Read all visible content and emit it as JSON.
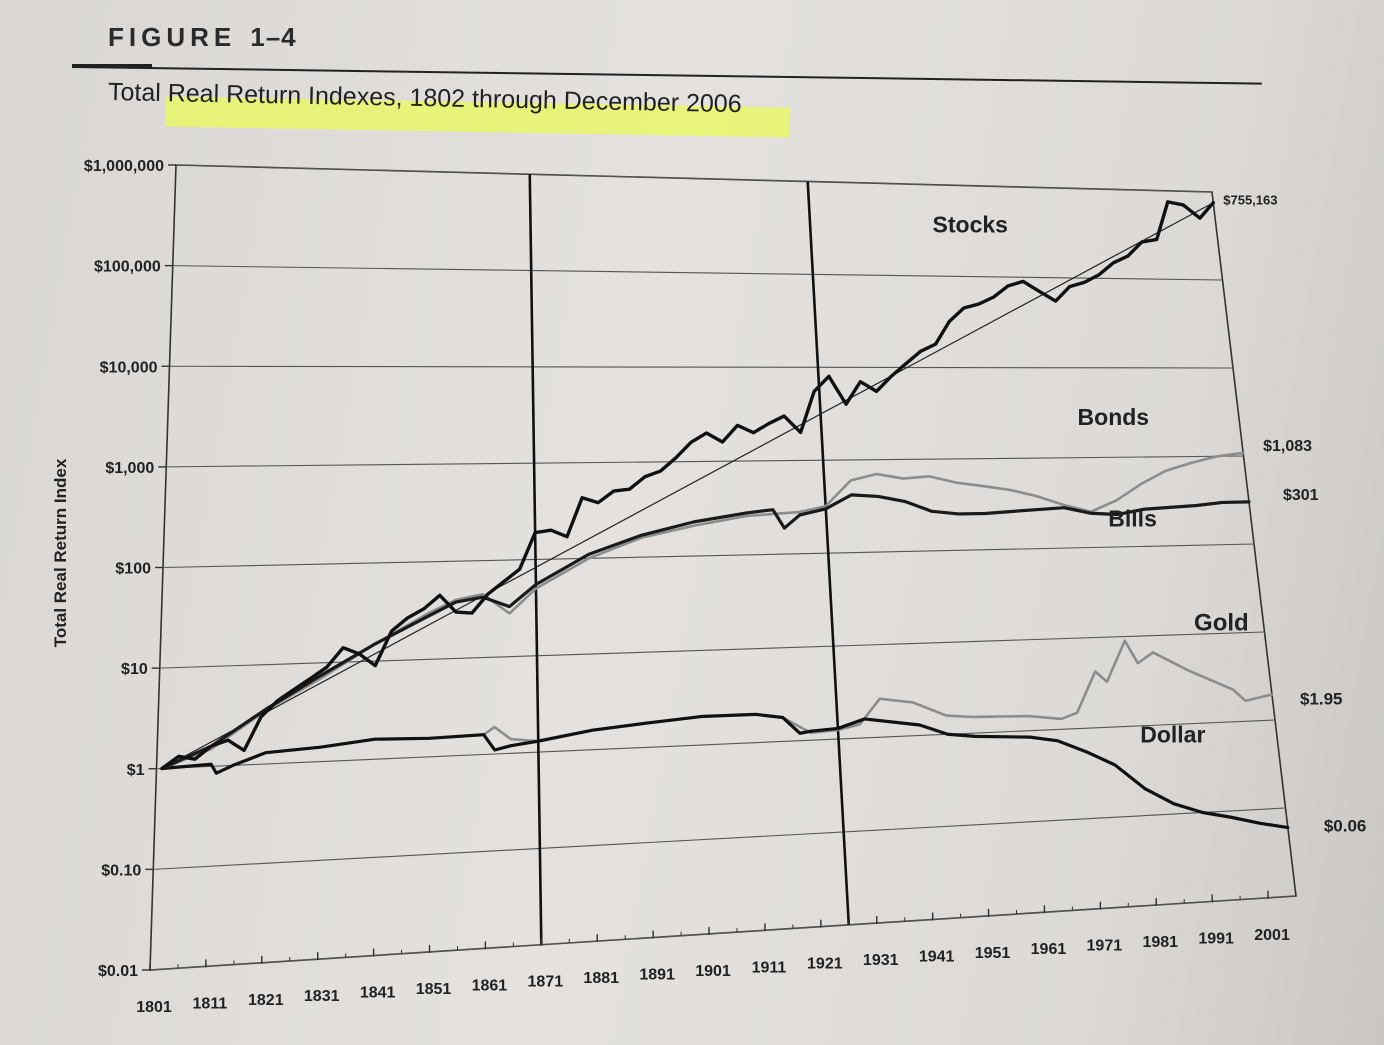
{
  "figure": {
    "label": "FIGURE",
    "number": "1–4",
    "title": "Total Real Return Indexes, 1802 through December 2006"
  },
  "chart_data": {
    "type": "line",
    "title": "Total Real Return Indexes, 1802 through December 2006",
    "ylabel": "Total Real Return Index",
    "xlabel": "",
    "y_scale": "log",
    "ylim": [
      0.01,
      1000000
    ],
    "xlim": [
      1801,
      2006
    ],
    "y_ticks": [
      {
        "value": 1000000,
        "label": "$1,000,000"
      },
      {
        "value": 100000,
        "label": "$100,000"
      },
      {
        "value": 10000,
        "label": "$10,000"
      },
      {
        "value": 1000,
        "label": "$1,000"
      },
      {
        "value": 100,
        "label": "$100"
      },
      {
        "value": 10,
        "label": "$10"
      },
      {
        "value": 1,
        "label": "$1"
      },
      {
        "value": 0.1,
        "label": "$0.10"
      },
      {
        "value": 0.01,
        "label": "$0.01"
      }
    ],
    "x_ticks": [
      "1801",
      "1811",
      "1821",
      "1831",
      "1841",
      "1851",
      "1861",
      "1871",
      "1881",
      "1891",
      "1901",
      "1911",
      "1921",
      "1931",
      "1941",
      "1951",
      "1961",
      "1971",
      "1981",
      "1991",
      "2001"
    ],
    "vertical_markers": [
      1871,
      1926
    ],
    "grid": true,
    "series": [
      {
        "name": "Stocks",
        "end_label": "$755,163",
        "color": "#111111",
        "x": [
          1802,
          1805,
          1808,
          1811,
          1814,
          1817,
          1820,
          1823,
          1826,
          1829,
          1832,
          1835,
          1838,
          1841,
          1844,
          1847,
          1850,
          1853,
          1856,
          1859,
          1862,
          1865,
          1868,
          1871,
          1874,
          1877,
          1880,
          1883,
          1886,
          1889,
          1892,
          1895,
          1898,
          1901,
          1904,
          1907,
          1910,
          1913,
          1916,
          1919,
          1922,
          1925,
          1928,
          1931,
          1934,
          1937,
          1940,
          1943,
          1946,
          1949,
          1952,
          1955,
          1958,
          1961,
          1964,
          1967,
          1970,
          1973,
          1976,
          1979,
          1982,
          1985,
          1988,
          1991,
          1994,
          1997,
          2000,
          2003,
          2006
        ],
        "values": [
          1,
          1.3,
          1.2,
          1.6,
          1.8,
          1.4,
          3,
          4.3,
          5.5,
          7,
          9,
          14,
          12,
          9,
          20,
          27,
          33,
          45,
          30,
          29,
          45,
          60,
          80,
          190,
          200,
          170,
          430,
          380,
          500,
          520,
          700,
          800,
          1100,
          1600,
          2000,
          1600,
          2400,
          2000,
          2500,
          3000,
          2000,
          5500,
          8000,
          4000,
          7000,
          5500,
          8000,
          11000,
          15000,
          18000,
          32000,
          45000,
          50000,
          60000,
          80000,
          90000,
          70000,
          55000,
          80000,
          90000,
          110000,
          150000,
          180000,
          260000,
          280000,
          750000,
          700000,
          500000,
          755163
        ]
      },
      {
        "name": "Bonds",
        "end_label": "$1,083",
        "color": "#8c8c8c",
        "x": [
          1802,
          1811,
          1821,
          1831,
          1841,
          1851,
          1856,
          1861,
          1866,
          1871,
          1881,
          1891,
          1901,
          1911,
          1916,
          1921,
          1926,
          1931,
          1936,
          1941,
          1946,
          1951,
          1956,
          1961,
          1966,
          1971,
          1976,
          1981,
          1986,
          1991,
          1996,
          2001,
          2006
        ],
        "values": [
          1,
          1.5,
          3.5,
          7,
          15,
          30,
          40,
          45,
          28,
          50,
          100,
          160,
          210,
          260,
          270,
          280,
          320,
          600,
          700,
          620,
          650,
          550,
          500,
          450,
          380,
          300,
          250,
          330,
          500,
          700,
          850,
          1000,
          1083
        ]
      },
      {
        "name": "Bills",
        "end_label": "$301",
        "color": "#1a1a1a",
        "x": [
          1802,
          1811,
          1821,
          1831,
          1841,
          1851,
          1856,
          1861,
          1866,
          1871,
          1881,
          1891,
          1901,
          1911,
          1916,
          1918,
          1921,
          1926,
          1931,
          1936,
          1941,
          1946,
          1951,
          1956,
          1961,
          1966,
          1971,
          1976,
          1981,
          1986,
          1991,
          1996,
          2001,
          2006
        ],
        "values": [
          1,
          1.6,
          3.6,
          7.5,
          15,
          28,
          38,
          42,
          33,
          55,
          110,
          170,
          230,
          280,
          300,
          190,
          260,
          300,
          420,
          400,
          350,
          270,
          250,
          250,
          260,
          270,
          280,
          240,
          230,
          260,
          270,
          280,
          300,
          301
        ]
      },
      {
        "name": "Gold",
        "end_label": "$1.95",
        "color": "#8c8c8c",
        "x": [
          1802,
          1811,
          1812,
          1815,
          1821,
          1831,
          1841,
          1851,
          1861,
          1863,
          1866,
          1871,
          1881,
          1891,
          1901,
          1911,
          1916,
          1921,
          1926,
          1930,
          1934,
          1940,
          1946,
          1951,
          1961,
          1967,
          1970,
          1974,
          1976,
          1980,
          1982,
          1985,
          1991,
          1999,
          2001,
          2006
        ],
        "values": [
          1,
          1.05,
          0.85,
          1,
          1.3,
          1.4,
          1.6,
          1.55,
          1.6,
          1.9,
          1.4,
          1.3,
          1.6,
          1.8,
          2.0,
          2.0,
          1.8,
          1.2,
          1.25,
          1.4,
          2.6,
          2.3,
          1.6,
          1.5,
          1.45,
          1.3,
          1.5,
          4.2,
          3.2,
          9,
          5,
          6.5,
          4,
          2.3,
          1.7,
          1.95
        ]
      },
      {
        "name": "Dollar",
        "end_label": "$0.06",
        "color": "#111111",
        "x": [
          1802,
          1811,
          1812,
          1815,
          1821,
          1831,
          1841,
          1851,
          1861,
          1863,
          1866,
          1871,
          1881,
          1891,
          1901,
          1911,
          1916,
          1919,
          1921,
          1926,
          1931,
          1941,
          1946,
          1951,
          1961,
          1966,
          1971,
          1976,
          1981,
          1986,
          1991,
          1996,
          2001,
          2006
        ],
        "values": [
          1,
          1.05,
          0.85,
          1,
          1.3,
          1.4,
          1.6,
          1.55,
          1.6,
          1.1,
          1.2,
          1.3,
          1.6,
          1.8,
          2.0,
          2.0,
          1.8,
          1.2,
          1.25,
          1.3,
          1.6,
          1.3,
          1.0,
          0.92,
          0.85,
          0.75,
          0.55,
          0.38,
          0.2,
          0.13,
          0.1,
          0.085,
          0.07,
          0.06
        ]
      }
    ],
    "annotations": {
      "Stocks": "Stocks",
      "Bonds": "Bonds",
      "Bills": "Bills",
      "Gold": "Gold",
      "Dollar": "Dollar"
    }
  }
}
